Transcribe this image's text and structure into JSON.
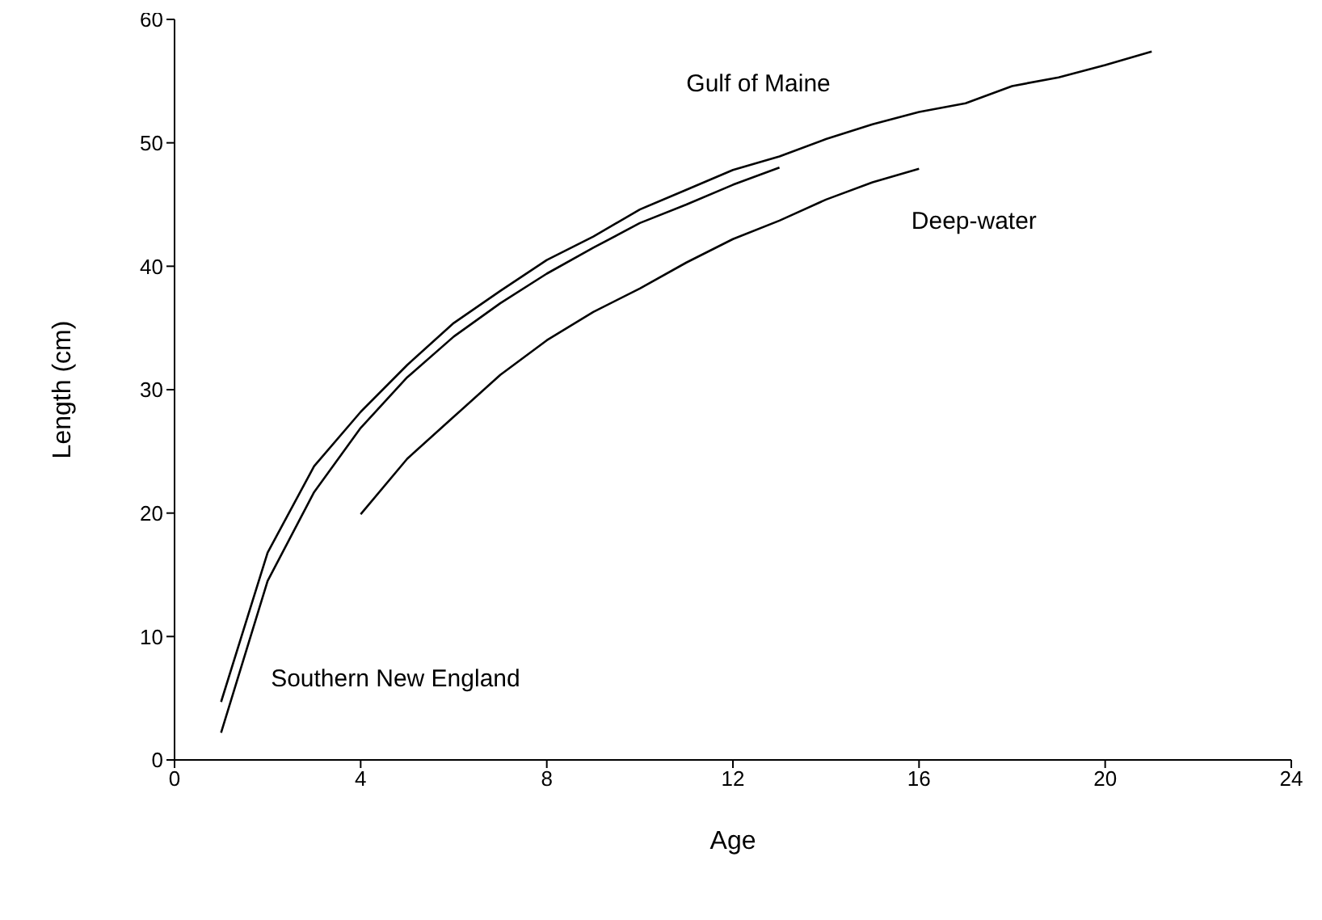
{
  "chart_data": {
    "type": "line",
    "xlabel": "Age",
    "ylabel": "Length (cm)",
    "xlim": [
      0,
      24
    ],
    "xticks": [
      0,
      4,
      8,
      12,
      16,
      20,
      24
    ],
    "ylim": [
      0,
      60
    ],
    "yticks": [
      0,
      10,
      20,
      30,
      40,
      50,
      60
    ],
    "grid": false,
    "legend": false,
    "marker": "none",
    "line_style": "solid",
    "series": [
      {
        "name": "Gulf of Maine",
        "color": "#000000",
        "x": [
          1,
          2,
          3,
          4,
          5,
          6,
          7,
          8,
          9,
          10,
          11,
          12,
          13,
          14,
          15,
          16,
          17,
          18,
          19,
          20,
          21
        ],
        "values": [
          4.7,
          16.8,
          23.8,
          28.2,
          32,
          35.4,
          38,
          40.5,
          42.4,
          44.6,
          46.2,
          47.8,
          48.9,
          50.3,
          51.5,
          52.5,
          53.2,
          54.6,
          55.3,
          56.3,
          57.4
        ]
      },
      {
        "name": "Southern New England",
        "color": "#000000",
        "x": [
          1,
          2,
          3,
          4,
          5,
          6,
          7,
          8,
          9,
          10,
          11,
          12,
          13
        ],
        "values": [
          2.2,
          14.5,
          21.7,
          26.9,
          31,
          34.3,
          37,
          39.4,
          41.5,
          43.5,
          45,
          46.6,
          48
        ]
      },
      {
        "name": "Deep-water",
        "color": "#000000",
        "x": [
          4,
          5,
          6,
          7,
          8,
          9,
          10,
          11,
          12,
          13,
          14,
          15,
          16
        ],
        "values": [
          19.9,
          24.4,
          27.8,
          31.2,
          34,
          36.3,
          38.2,
          40.3,
          42.2,
          43.7,
          45.4,
          46.8,
          47.9
        ]
      }
    ]
  }
}
